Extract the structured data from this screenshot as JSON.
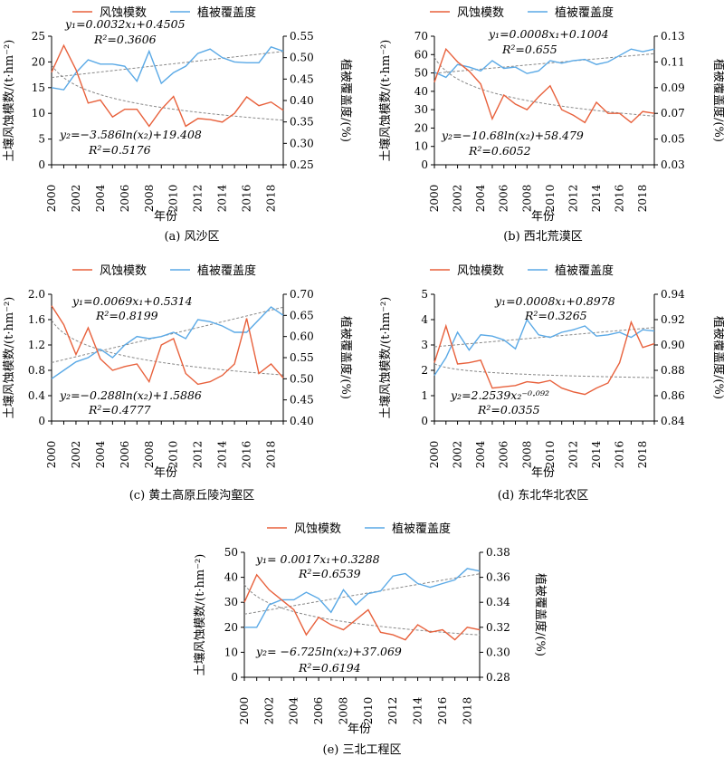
{
  "legend": {
    "erosion": "风蚀模数",
    "vegetation": "植被覆盖度"
  },
  "colors": {
    "erosion": "#e8613c",
    "vegetation": "#5aa9e6",
    "trend": "#888888"
  },
  "chart_data": [
    {
      "type": "line",
      "caption": "(a) 风沙区",
      "xlabel": "年份",
      "ylabel": "土壤风蚀模数/(t·hm⁻²)",
      "y2label": "植被覆盖度/(%)",
      "x": [
        2000,
        2001,
        2002,
        2003,
        2004,
        2005,
        2006,
        2007,
        2008,
        2009,
        2010,
        2011,
        2012,
        2013,
        2014,
        2015,
        2016,
        2017,
        2018,
        2019
      ],
      "x_ticks": [
        2000,
        2002,
        2004,
        2006,
        2008,
        2010,
        2012,
        2014,
        2016,
        2018
      ],
      "ylim": [
        0,
        25
      ],
      "y_ticks": [
        "0",
        "5",
        "10",
        "15",
        "20",
        "25"
      ],
      "y2lim": [
        0.25,
        0.55
      ],
      "y2_ticks": [
        "0.25",
        "0.30",
        "0.35",
        "0.40",
        "0.45",
        "0.50",
        "0.55"
      ],
      "series": [
        {
          "name": "风蚀模数",
          "axis": "left",
          "values": [
            18,
            23.2,
            18.5,
            12,
            12.6,
            9.3,
            10.8,
            10.8,
            7.5,
            10.8,
            13.3,
            7.5,
            9,
            8.8,
            8.3,
            10,
            13.2,
            11.5,
            12.2,
            10.6
          ]
        },
        {
          "name": "植被覆盖度",
          "axis": "right",
          "values": [
            0.43,
            0.425,
            0.465,
            0.495,
            0.485,
            0.485,
            0.48,
            0.445,
            0.515,
            0.44,
            0.465,
            0.48,
            0.51,
            0.52,
            0.5,
            0.49,
            0.488,
            0.488,
            0.525,
            0.515
          ]
        }
      ],
      "trend1": {
        "model": "linear",
        "axis": "right",
        "a": 0.0032,
        "b": 0.4505
      },
      "trend2": {
        "model": "log",
        "axis": "left",
        "a": -3.586,
        "b": 19.408
      },
      "eq1": "y₁=0.0032x₁+0.4505",
      "r1": "R²=0.3606",
      "eq2": "y₂=−3.586ln(x₂)+19.408",
      "r2": "R²=0.5176"
    },
    {
      "type": "line",
      "caption": "(b) 西北荒漠区",
      "xlabel": "年份",
      "ylabel": "土壤风蚀模数/(t·hm⁻²)",
      "y2label": "植被覆盖度/(%)",
      "x": [
        2000,
        2001,
        2002,
        2003,
        2004,
        2005,
        2006,
        2007,
        2008,
        2009,
        2010,
        2011,
        2012,
        2013,
        2014,
        2015,
        2016,
        2017,
        2018,
        2019
      ],
      "x_ticks": [
        2000,
        2002,
        2004,
        2006,
        2008,
        2010,
        2012,
        2014,
        2016,
        2018
      ],
      "ylim": [
        0,
        70
      ],
      "y_ticks": [
        "0",
        "10",
        "20",
        "30",
        "40",
        "50",
        "60",
        "70"
      ],
      "y2lim": [
        0.03,
        0.13
      ],
      "y2_ticks": [
        "0.03",
        "0.05",
        "0.07",
        "0.09",
        "0.11",
        "0.13"
      ],
      "series": [
        {
          "name": "风蚀模数",
          "axis": "left",
          "values": [
            45,
            63,
            56,
            51,
            44,
            25,
            38,
            33,
            30,
            37,
            43,
            30,
            27,
            23,
            34,
            28,
            28,
            23,
            29,
            28
          ]
        },
        {
          "name": "植被覆盖度",
          "axis": "right",
          "values": [
            0.102,
            0.098,
            0.108,
            0.106,
            0.103,
            0.111,
            0.105,
            0.106,
            0.101,
            0.103,
            0.111,
            0.109,
            0.111,
            0.112,
            0.108,
            0.11,
            0.115,
            0.12,
            0.118,
            0.12
          ]
        }
      ],
      "trend1": {
        "model": "linear",
        "axis": "right",
        "a": 0.0008,
        "b": 0.1004
      },
      "trend2": {
        "model": "log",
        "axis": "left",
        "a": -10.68,
        "b": 58.479
      },
      "eq1": "y₁=0.0008x₁+0.1004",
      "r1": "R²=0.655",
      "eq2": "y₂=−10.68ln(x₂)+58.479",
      "r2": "R²=0.6052"
    },
    {
      "type": "line",
      "caption": "(c) 黄土高原丘陵沟壑区",
      "xlabel": "年份",
      "ylabel": "土壤风蚀模数/(t·hm⁻²)",
      "y2label": "植被覆盖度/(%)",
      "x": [
        2000,
        2001,
        2002,
        2003,
        2004,
        2005,
        2006,
        2007,
        2008,
        2009,
        2010,
        2011,
        2012,
        2013,
        2014,
        2015,
        2016,
        2017,
        2018,
        2019
      ],
      "x_ticks": [
        2000,
        2002,
        2004,
        2006,
        2008,
        2010,
        2012,
        2014,
        2016,
        2018
      ],
      "ylim": [
        0,
        2.0
      ],
      "y_ticks": [
        "0",
        "0.4",
        "0.8",
        "1.2",
        "1.6",
        "2.0"
      ],
      "y2lim": [
        0.4,
        0.7
      ],
      "y2_ticks": [
        "0.40",
        "0.45",
        "0.50",
        "0.55",
        "0.60",
        "0.65",
        "0.70"
      ],
      "series": [
        {
          "name": "风蚀模数",
          "axis": "left",
          "values": [
            1.82,
            1.52,
            1.05,
            1.47,
            0.98,
            0.8,
            0.86,
            0.9,
            0.62,
            1.2,
            1.3,
            0.75,
            0.58,
            0.62,
            0.72,
            0.9,
            1.62,
            0.75,
            0.9,
            0.68
          ]
        },
        {
          "name": "植被覆盖度",
          "axis": "right",
          "values": [
            0.5,
            0.52,
            0.54,
            0.55,
            0.57,
            0.55,
            0.58,
            0.6,
            0.595,
            0.6,
            0.61,
            0.595,
            0.64,
            0.635,
            0.625,
            0.61,
            0.61,
            0.64,
            0.67,
            0.65
          ]
        }
      ],
      "trend1": {
        "model": "linear",
        "axis": "right",
        "a": 0.0069,
        "b": 0.5314
      },
      "trend2": {
        "model": "log",
        "axis": "left",
        "a": -0.288,
        "b": 1.5886
      },
      "eq1": "y₁=0.0069x₁+0.5314",
      "r1": "R²=0.8199",
      "eq2": "y₂=−0.288ln(x₂)+1.5886",
      "r2": "R²=0.4777"
    },
    {
      "type": "line",
      "caption": "(d) 东北华北农区",
      "xlabel": "年份",
      "ylabel": "土壤风蚀模数/(t·hm⁻²)",
      "y2label": "植被覆盖度/(%)",
      "x": [
        2000,
        2001,
        2002,
        2003,
        2004,
        2005,
        2006,
        2007,
        2008,
        2009,
        2010,
        2011,
        2012,
        2013,
        2014,
        2015,
        2016,
        2017,
        2018,
        2019
      ],
      "x_ticks": [
        2000,
        2002,
        2004,
        2006,
        2008,
        2010,
        2012,
        2014,
        2016,
        2018
      ],
      "ylim": [
        0,
        5
      ],
      "y_ticks": [
        "0",
        "1",
        "2",
        "3",
        "4",
        "5"
      ],
      "y2lim": [
        0.84,
        0.94
      ],
      "y2_ticks": [
        "0.84",
        "0.86",
        "0.88",
        "0.90",
        "0.92",
        "0.94"
      ],
      "series": [
        {
          "name": "风蚀模数",
          "axis": "left",
          "values": [
            2.3,
            3.75,
            2.25,
            2.3,
            2.4,
            1.3,
            1.35,
            1.4,
            1.55,
            1.5,
            1.6,
            1.3,
            1.15,
            1.05,
            1.3,
            1.5,
            2.3,
            3.9,
            2.9,
            3.05
          ]
        },
        {
          "name": "植被覆盖度",
          "axis": "right",
          "values": [
            0.876,
            0.89,
            0.91,
            0.896,
            0.908,
            0.907,
            0.904,
            0.897,
            0.92,
            0.908,
            0.906,
            0.91,
            0.912,
            0.915,
            0.907,
            0.908,
            0.91,
            0.906,
            0.912,
            0.911
          ]
        }
      ],
      "trend1": {
        "model": "linear",
        "axis": "right",
        "a": 0.0008,
        "b": 0.8978
      },
      "trend2": {
        "model": "power",
        "axis": "left",
        "a": 2.2539,
        "b": -0.092
      },
      "eq1": "y₁=0.0008x₁+0.8978",
      "r1": "R²=0.3265",
      "eq2": "y₂=2.2539x₂⁻⁰·⁰⁹²",
      "r2": "R²=0.0355"
    },
    {
      "type": "line",
      "caption": "(e) 三北工程区",
      "xlabel": "年份",
      "ylabel": "土壤风蚀模数/(t·hm⁻²)",
      "y2label": "植被覆盖度/(%)",
      "x": [
        2000,
        2001,
        2002,
        2003,
        2004,
        2005,
        2006,
        2007,
        2008,
        2009,
        2010,
        2011,
        2012,
        2013,
        2014,
        2015,
        2016,
        2017,
        2018,
        2019
      ],
      "x_ticks": [
        2000,
        2002,
        2004,
        2006,
        2008,
        2010,
        2012,
        2014,
        2016,
        2018
      ],
      "ylim": [
        0,
        50
      ],
      "y_ticks": [
        "0",
        "10",
        "20",
        "30",
        "40",
        "50"
      ],
      "y2lim": [
        0.28,
        0.38
      ],
      "y2_ticks": [
        "0.28",
        "0.30",
        "0.32",
        "0.34",
        "0.36",
        "0.38"
      ],
      "series": [
        {
          "name": "风蚀模数",
          "axis": "left",
          "values": [
            30,
            41,
            35,
            31,
            27,
            17,
            24,
            21,
            19,
            23,
            27,
            18,
            17,
            15,
            21,
            18,
            19,
            15,
            20,
            19
          ]
        },
        {
          "name": "植被覆盖度",
          "axis": "right",
          "values": [
            0.32,
            0.32,
            0.338,
            0.342,
            0.342,
            0.348,
            0.343,
            0.332,
            0.35,
            0.338,
            0.347,
            0.349,
            0.361,
            0.363,
            0.355,
            0.352,
            0.355,
            0.358,
            0.367,
            0.365
          ]
        }
      ],
      "trend1": {
        "model": "linear",
        "axis": "right",
        "a": 0.0017,
        "b": 0.3288
      },
      "trend2": {
        "model": "log",
        "axis": "left",
        "a": -6.725,
        "b": 37.069
      },
      "eq1": "y₁= 0.0017x₁+0.3288",
      "r1": "R²=0.6539",
      "eq2": "y₂= −6.725ln(x₂)+37.069",
      "r2": "R²=0.6194"
    }
  ]
}
